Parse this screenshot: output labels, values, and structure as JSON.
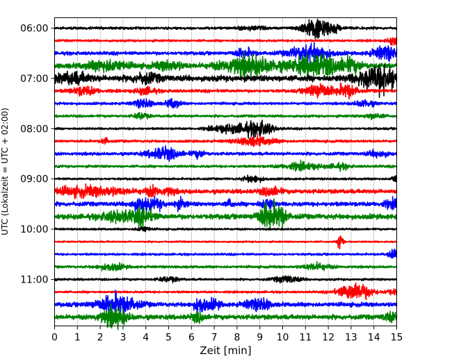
{
  "chart_data": {
    "type": "line",
    "title": "",
    "xlabel": "Zeit  [min]",
    "ylabel": "UTC (Lokalzeit = UTC + 02:00)",
    "xlim": [
      0,
      15
    ],
    "x_ticks": [
      0,
      1,
      2,
      3,
      4,
      5,
      6,
      7,
      8,
      9,
      10,
      11,
      12,
      13,
      14,
      15
    ],
    "grid": "vertical-dotted",
    "trace_interval_minutes": 15,
    "y_ticks": [
      {
        "label": "06:00",
        "trace_index": 0
      },
      {
        "label": "07:00",
        "trace_index": 4
      },
      {
        "label": "08:00",
        "trace_index": 8
      },
      {
        "label": "09:00",
        "trace_index": 12
      },
      {
        "label": "10:00",
        "trace_index": 16
      },
      {
        "label": "11:00",
        "trace_index": 20
      }
    ],
    "color_cycle": [
      "#000000",
      "#ff0000",
      "#0000ff",
      "#008000"
    ],
    "traces": [
      {
        "start": "06:00",
        "color": "#000000",
        "noise": 1.5,
        "events": [
          [
            8.6,
            2.0,
            0.4
          ],
          [
            11.7,
            9.0,
            0.5
          ],
          [
            11.3,
            5.0,
            0.4
          ]
        ]
      },
      {
        "start": "06:15",
        "color": "#ff0000",
        "noise": 1.3,
        "events": [
          [
            14.9,
            5.0,
            0.2
          ]
        ]
      },
      {
        "start": "06:30",
        "color": "#0000ff",
        "noise": 2.0,
        "events": [
          [
            8.3,
            5.0,
            0.3
          ],
          [
            11.2,
            10.0,
            0.6
          ],
          [
            14.5,
            8.0,
            0.4
          ]
        ]
      },
      {
        "start": "06:45",
        "color": "#008000",
        "noise": 3.0,
        "events": [
          [
            2.3,
            6.0,
            0.6
          ],
          [
            5.0,
            5.0,
            0.4
          ],
          [
            8.5,
            11.0,
            0.8
          ],
          [
            11.5,
            12.0,
            0.8
          ],
          [
            13.0,
            6.0,
            0.3
          ]
        ]
      },
      {
        "start": "07:00",
        "color": "#000000",
        "noise": 3.5,
        "events": [
          [
            0.8,
            6.0,
            0.5
          ],
          [
            4.0,
            5.0,
            0.4
          ],
          [
            14.0,
            10.0,
            0.6
          ],
          [
            14.6,
            9.0,
            0.4
          ]
        ]
      },
      {
        "start": "07:15",
        "color": "#ff0000",
        "noise": 1.8,
        "events": [
          [
            1.3,
            5.0,
            0.4
          ],
          [
            4.0,
            4.0,
            0.3
          ],
          [
            11.6,
            9.0,
            0.4
          ],
          [
            12.8,
            8.0,
            0.3
          ]
        ]
      },
      {
        "start": "07:30",
        "color": "#0000ff",
        "noise": 1.5,
        "events": [
          [
            3.9,
            5.0,
            0.3
          ],
          [
            5.2,
            6.0,
            0.2
          ],
          [
            13.6,
            4.0,
            0.3
          ]
        ]
      },
      {
        "start": "07:45",
        "color": "#008000",
        "noise": 1.5,
        "events": [
          [
            3.8,
            4.0,
            0.2
          ],
          [
            14.0,
            3.0,
            0.3
          ]
        ]
      },
      {
        "start": "08:00",
        "color": "#000000",
        "noise": 1.3,
        "events": [
          [
            7.5,
            4.0,
            0.5
          ],
          [
            8.7,
            7.0,
            0.5
          ],
          [
            9.2,
            4.0,
            0.3
          ]
        ]
      },
      {
        "start": "08:15",
        "color": "#ff0000",
        "noise": 1.5,
        "events": [
          [
            2.2,
            4.0,
            0.1
          ],
          [
            8.8,
            5.0,
            0.6
          ]
        ]
      },
      {
        "start": "08:30",
        "color": "#0000ff",
        "noise": 1.8,
        "events": [
          [
            4.8,
            7.0,
            0.5
          ],
          [
            6.3,
            4.0,
            0.2
          ],
          [
            14.2,
            4.0,
            0.3
          ]
        ]
      },
      {
        "start": "08:45",
        "color": "#008000",
        "noise": 1.5,
        "events": [
          [
            10.8,
            4.0,
            0.6
          ],
          [
            12.5,
            3.0,
            0.3
          ]
        ]
      },
      {
        "start": "09:00",
        "color": "#000000",
        "noise": 1.3,
        "events": [
          [
            8.7,
            4.0,
            0.3
          ],
          [
            14.9,
            4.0,
            0.1
          ]
        ]
      },
      {
        "start": "09:15",
        "color": "#ff0000",
        "noise": 2.5,
        "events": [
          [
            1.5,
            5.0,
            1.2
          ],
          [
            4.3,
            5.0,
            0.2
          ],
          [
            5.0,
            4.0,
            0.2
          ],
          [
            9.5,
            5.0,
            0.3
          ]
        ]
      },
      {
        "start": "09:30",
        "color": "#0000ff",
        "noise": 2.5,
        "events": [
          [
            3.8,
            8.0,
            0.3
          ],
          [
            4.5,
            5.0,
            0.2
          ],
          [
            5.5,
            5.0,
            0.2
          ],
          [
            7.7,
            5.0,
            0.1
          ],
          [
            9.3,
            6.0,
            0.2
          ],
          [
            14.8,
            4.0,
            0.3
          ]
        ]
      },
      {
        "start": "09:45",
        "color": "#008000",
        "noise": 3.0,
        "events": [
          [
            2.8,
            6.0,
            0.5
          ],
          [
            3.9,
            9.0,
            0.3
          ],
          [
            9.35,
            15.0,
            0.3
          ],
          [
            9.9,
            10.0,
            0.2
          ]
        ]
      },
      {
        "start": "10:00",
        "color": "#000000",
        "noise": 1.2,
        "events": [
          [
            3.9,
            3.0,
            0.2
          ]
        ]
      },
      {
        "start": "10:15",
        "color": "#ff0000",
        "noise": 1.0,
        "events": [
          [
            12.55,
            14.0,
            0.08
          ]
        ]
      },
      {
        "start": "10:30",
        "color": "#0000ff",
        "noise": 1.3,
        "events": [
          [
            14.9,
            5.0,
            0.2
          ]
        ]
      },
      {
        "start": "10:45",
        "color": "#008000",
        "noise": 1.5,
        "events": [
          [
            2.5,
            4.0,
            0.4
          ],
          [
            11.5,
            4.0,
            0.4
          ]
        ]
      },
      {
        "start": "11:00",
        "color": "#000000",
        "noise": 1.3,
        "events": [
          [
            5.0,
            3.0,
            0.3
          ],
          [
            10.2,
            4.0,
            0.4
          ]
        ]
      },
      {
        "start": "11:15",
        "color": "#ff0000",
        "noise": 1.3,
        "events": [
          [
            13.2,
            11.0,
            0.5
          ],
          [
            14.8,
            3.0,
            0.2
          ]
        ]
      },
      {
        "start": "11:30",
        "color": "#0000ff",
        "noise": 2.5,
        "events": [
          [
            2.7,
            11.0,
            0.6
          ],
          [
            6.4,
            9.0,
            0.2
          ],
          [
            7.0,
            5.0,
            0.2
          ],
          [
            8.7,
            5.0,
            0.3
          ],
          [
            9.2,
            5.0,
            0.2
          ]
        ]
      },
      {
        "start": "11:45",
        "color": "#008000",
        "noise": 2.8,
        "events": [
          [
            2.6,
            11.0,
            0.4
          ],
          [
            6.3,
            5.0,
            0.2
          ],
          [
            14.7,
            5.0,
            0.2
          ]
        ]
      }
    ]
  }
}
